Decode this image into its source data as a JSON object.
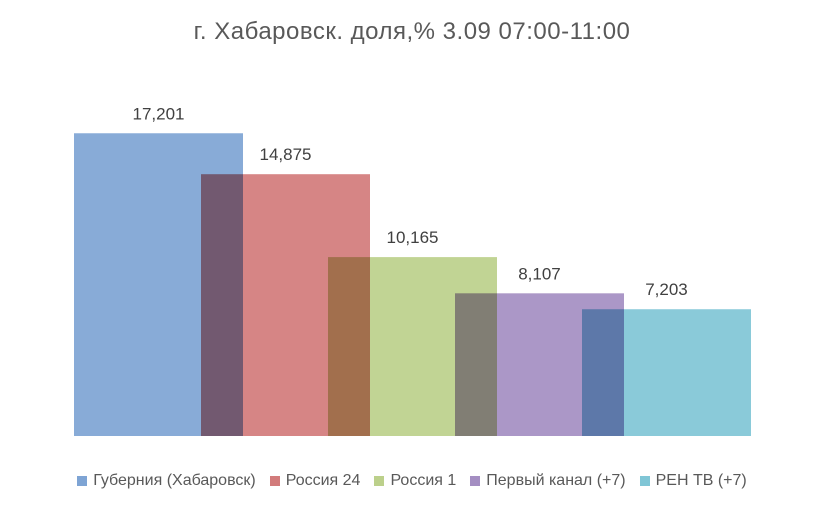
{
  "chart_data": {
    "type": "bar",
    "title": "г. Хабаровск. доля,% 3.09 07:00-11:00",
    "xlabel": "",
    "ylabel": "",
    "ylim": [
      0,
      20
    ],
    "grid": false,
    "legend_position": "bottom",
    "series": [
      {
        "name": "Губерния (Хабаровск)",
        "value": 17.201,
        "label": "17,201",
        "color": "#7ea4d4"
      },
      {
        "name": "Россия 24",
        "value": 14.875,
        "label": "14,875",
        "color": "#d27b7b"
      },
      {
        "name": "Россия 1",
        "value": 10.165,
        "label": "10,165",
        "color": "#bcd08b"
      },
      {
        "name": "Первый канал (+7)",
        "value": 8.107,
        "label": "8,107",
        "color": "#a48ec2"
      },
      {
        "name": "РЕН ТВ (+7)",
        "value": 7.203,
        "label": "7,203",
        "color": "#80c6d6"
      }
    ]
  }
}
